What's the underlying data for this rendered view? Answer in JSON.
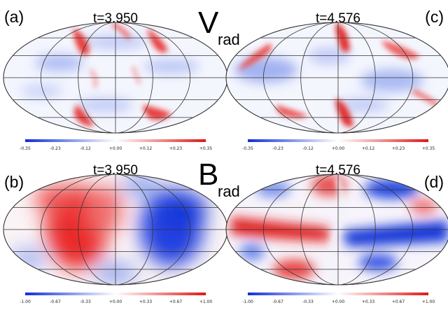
{
  "panels": [
    {
      "id": "a",
      "label": "(a)",
      "time": "t=3.950",
      "field": "vrad",
      "colorbar": {
        "min": -0.35,
        "max": 0.35,
        "ticks": [
          "-0.35",
          "-0.23",
          "-0.12",
          "+0.00",
          "+0.12",
          "+0.23",
          "+0.35"
        ]
      }
    },
    {
      "id": "c",
      "label": "(c)",
      "time": "t=4.576",
      "field": "vrad",
      "colorbar": {
        "min": -0.35,
        "max": 0.35,
        "ticks": [
          "-0.35",
          "-0.23",
          "-0.12",
          "+0.00",
          "+0.12",
          "+0.23",
          "+0.35"
        ]
      }
    },
    {
      "id": "b",
      "label": "(b)",
      "time": "t=3.950",
      "field": "brad",
      "colorbar": {
        "min": -1.0,
        "max": 1.0,
        "ticks": [
          "-1.00",
          "-0.67",
          "-0.33",
          "+0.00",
          "+0.33",
          "+0.67",
          "+1.00"
        ]
      }
    },
    {
      "id": "d",
      "label": "(d)",
      "time": "t=4.576",
      "field": "brad",
      "colorbar": {
        "min": -1.0,
        "max": 1.0,
        "ticks": [
          "-1.00",
          "-0.67",
          "-0.33",
          "+0.00",
          "+0.33",
          "+0.67",
          "+1.00"
        ]
      }
    }
  ],
  "row_titles": [
    {
      "main": "V",
      "sub": "rad"
    },
    {
      "main": "B",
      "sub": "rad"
    }
  ],
  "colors": {
    "negative": "#1030d8",
    "zero": "#ffffff",
    "positive": "#e01818",
    "grid": "#333333"
  }
}
